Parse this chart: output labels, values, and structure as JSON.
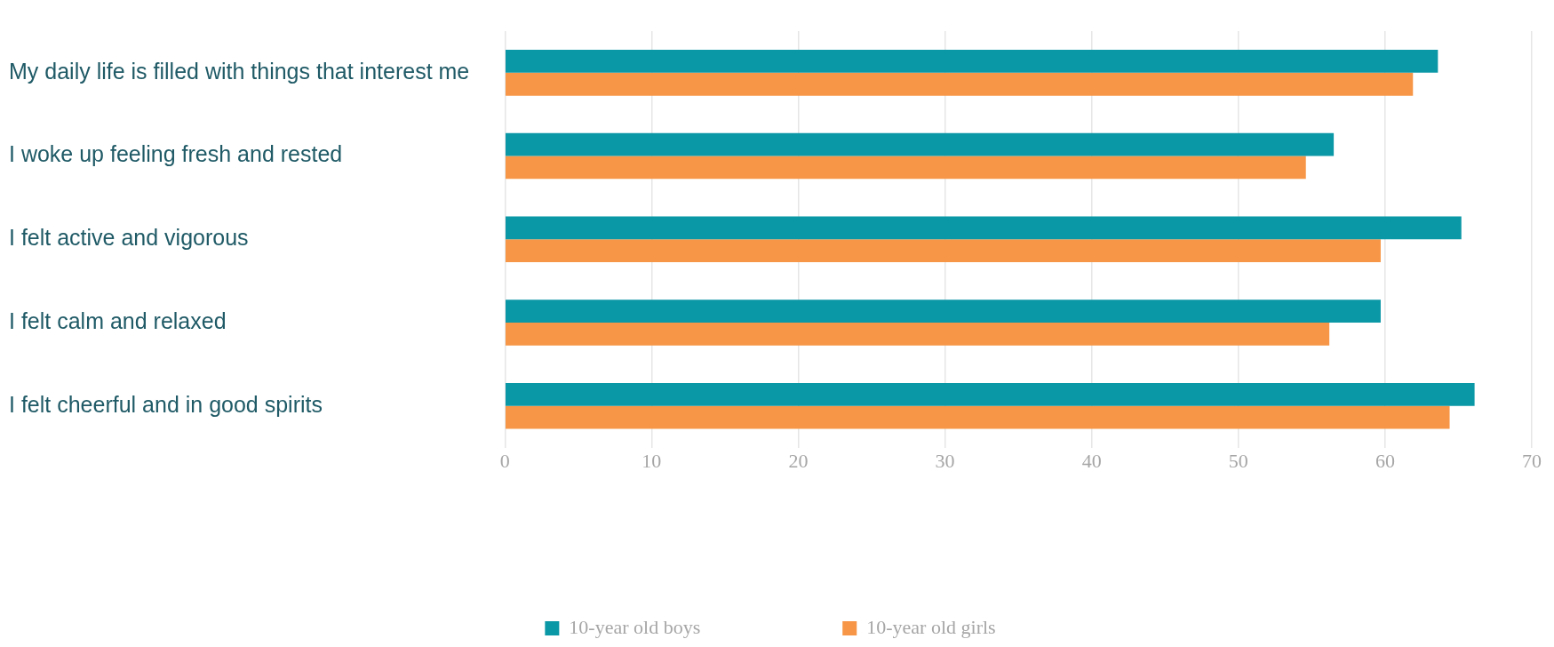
{
  "chart_data": {
    "type": "bar",
    "orientation": "horizontal",
    "categories": [
      "My daily life is filled with things that interest me",
      "I woke up feeling fresh and rested",
      "I felt active and vigorous",
      "I felt calm and relaxed",
      "I felt cheerful and in good spirits"
    ],
    "series": [
      {
        "name": "10-year old boys",
        "color": "#0a97a6",
        "values": [
          63.6,
          56.5,
          65.2,
          59.7,
          66.1
        ]
      },
      {
        "name": "10-year old girls",
        "color": "#f79646",
        "values": [
          61.9,
          54.6,
          59.7,
          56.2,
          64.4
        ]
      }
    ],
    "xlim": [
      0,
      70
    ],
    "xticks": [
      0,
      10,
      20,
      30,
      40,
      50,
      60,
      70
    ],
    "grid": "x",
    "legend": "bottom"
  }
}
